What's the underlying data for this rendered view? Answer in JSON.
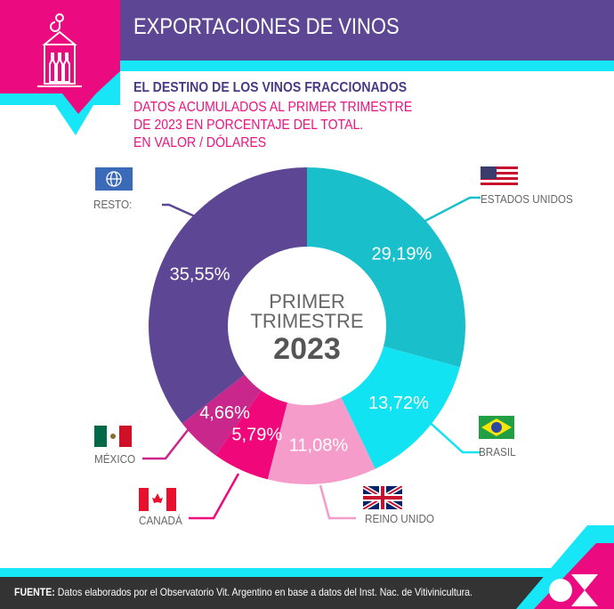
{
  "header": {
    "title": "EXPORTACIONES DE VINOS"
  },
  "subtitle": {
    "line1": "EL DESTINO DE LOS VINOS FRACCIONADOS",
    "line2": "DATOS ACUMULADOS AL PRIMER TRIMESTRE",
    "line3": "DE 2023 EN PORCENTAJE DEL TOTAL.",
    "line4": "EN VALOR / DÓLARES"
  },
  "center": {
    "line1": "PRIMER",
    "line2": "TRIMESTRE",
    "year": "2023"
  },
  "chart_data": {
    "type": "pie",
    "title": "EL DESTINO DE LOS VINOS FRACCIONADOS",
    "categories": [
      "ESTADOS UNIDOS",
      "BRASIL",
      "REINO UNIDO",
      "CANADÁ",
      "MÉXICO",
      "RESTO:"
    ],
    "values": [
      29.19,
      13.72,
      11.08,
      5.79,
      4.66,
      35.55
    ],
    "labels": [
      "29,19%",
      "13,72%",
      "11,08%",
      "5,79%",
      "4,66%",
      "35,55%"
    ],
    "colors": [
      "#19c0cb",
      "#12e3f3",
      "#f59ccb",
      "#f0087b",
      "#c9278b",
      "#5d4693"
    ],
    "unit": "%"
  },
  "legend": {
    "us": "ESTADOS UNIDOS",
    "br": "BRASIL",
    "uk": "REINO UNIDO",
    "ca": "CANADÁ",
    "mx": "MÉXICO",
    "rest": "RESTO:"
  },
  "footer": {
    "label": "FUENTE:",
    "text": " Datos elaborados por el Observatorio Vit. Argentino en base a datos del Inst. Nac. de Vitivinicultura."
  }
}
